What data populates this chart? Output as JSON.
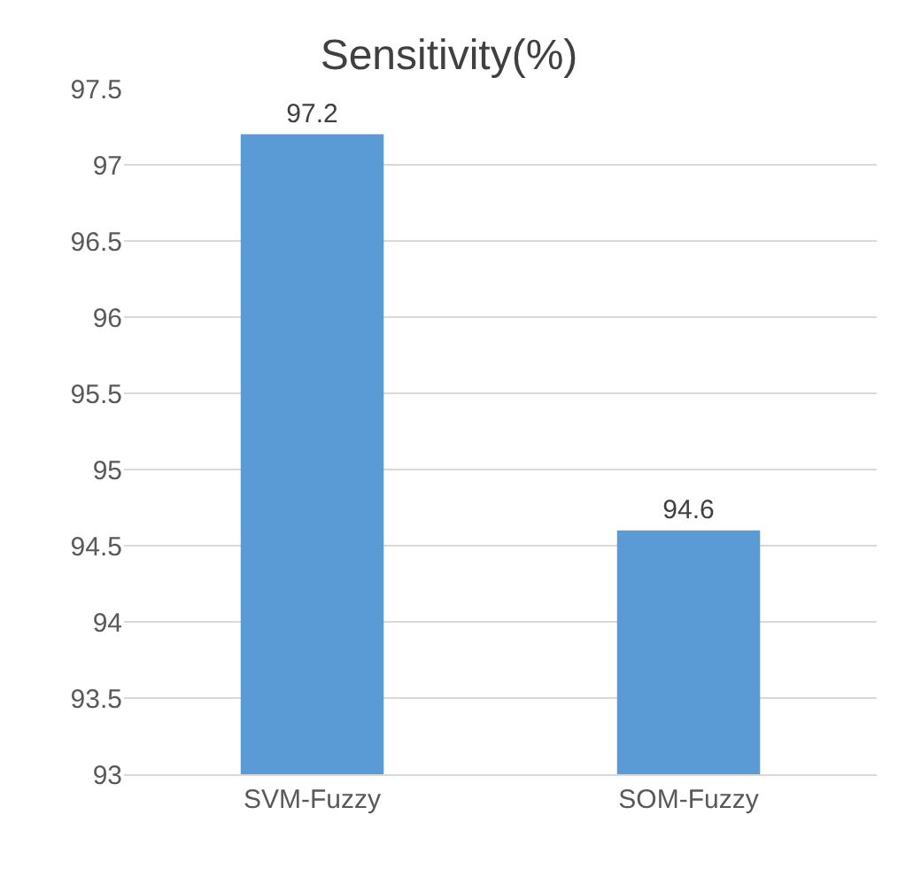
{
  "chart_data": {
    "type": "bar",
    "title": "Sensitivity(%)",
    "categories": [
      "SVM-Fuzzy",
      "SOM-Fuzzy"
    ],
    "values": [
      97.2,
      94.6
    ],
    "color": "#5b9bd5",
    "ylim": [
      93,
      97.5
    ],
    "yticks": [
      93,
      93.5,
      94,
      94.5,
      95,
      95.5,
      96,
      96.5,
      97,
      97.5
    ],
    "grid": "y",
    "data_labels": true
  }
}
